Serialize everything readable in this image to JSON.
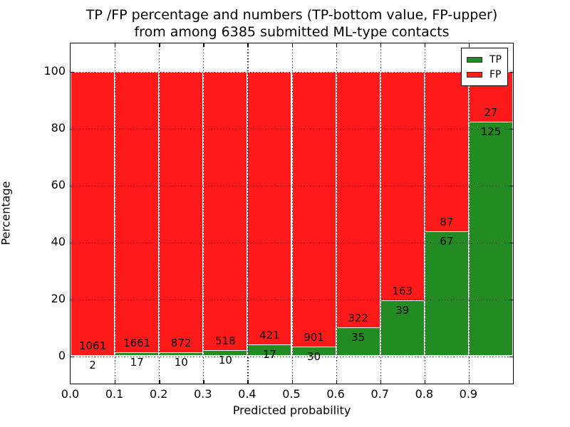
{
  "chart": {
    "title_line1": "TP /FP percentage and numbers (TP-bottom value, FP-upper)",
    "title_line2": "from among 6385 submitted ML-type contacts",
    "xlabel": "Predicted probability",
    "ylabel": "Percentage"
  },
  "chart_data": {
    "type": "bar",
    "subtype": "stacked-percentage-histogram",
    "title": "TP /FP percentage and numbers (TP-bottom value, FP-upper) from among 6385 submitted ML-type contacts",
    "xlabel": "Predicted probability",
    "ylabel": "Percentage",
    "total_submitted_contacts": 6385,
    "bin_edges": [
      0.0,
      0.1,
      0.2,
      0.3,
      0.4,
      0.5,
      0.6,
      0.7,
      0.8,
      0.9,
      1.0
    ],
    "xtick_labels": [
      "0.0",
      "0.1",
      "0.2",
      "0.3",
      "0.4",
      "0.5",
      "0.6",
      "0.7",
      "0.8",
      "0.9"
    ],
    "ytick_values": [
      0,
      20,
      40,
      60,
      80,
      100
    ],
    "xlim": [
      0.0,
      1.0
    ],
    "ylim": [
      -9.5,
      110
    ],
    "grid": "dotted",
    "bar_total_percent": 100,
    "annotation_note": "TP count shown below segment boundary, FP count shown above",
    "series": [
      {
        "name": "TP",
        "color": "#228B22",
        "counts": [
          2,
          17,
          10,
          10,
          17,
          30,
          35,
          39,
          67,
          125
        ],
        "percent": [
          0.19,
          1.01,
          1.13,
          1.89,
          3.88,
          3.22,
          9.8,
          19.31,
          43.51,
          82.24
        ]
      },
      {
        "name": "FP",
        "color": "#FF1A1A",
        "counts": [
          1061,
          1661,
          872,
          518,
          421,
          901,
          322,
          163,
          87,
          27
        ],
        "percent": [
          99.81,
          98.99,
          98.87,
          98.11,
          96.12,
          96.78,
          90.2,
          80.69,
          56.49,
          17.76
        ]
      }
    ],
    "legend": {
      "position": "upper-right",
      "labels": [
        "TP",
        "FP"
      ]
    }
  }
}
